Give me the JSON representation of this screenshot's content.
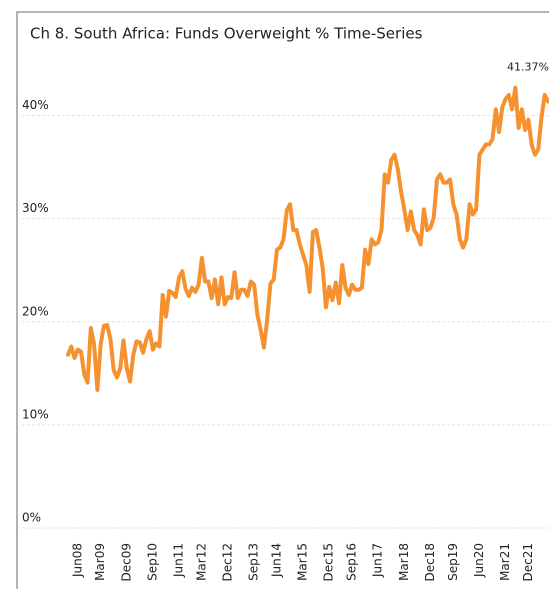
{
  "chart_data": {
    "type": "line",
    "title": "Ch 8. South Africa:  Funds Overweight % Time-Series",
    "categories": [
      null,
      null,
      null,
      "Jun08",
      null,
      null,
      null,
      null,
      null,
      null,
      "Mar09",
      null,
      null,
      null,
      null,
      null,
      null,
      null,
      "Dec09",
      null,
      null,
      null,
      null,
      null,
      null,
      null,
      "Sep10",
      null,
      null,
      null,
      null,
      null,
      null,
      null,
      "Jun11",
      null,
      null,
      null,
      null,
      null,
      null,
      "Mar12",
      null,
      null,
      null,
      null,
      null,
      null,
      null,
      "Dec12",
      null,
      null,
      null,
      null,
      null,
      null,
      null,
      "Sep13",
      null,
      null,
      null,
      null,
      null,
      null,
      "Jun14",
      null,
      null,
      null,
      null,
      null,
      null,
      null,
      "Mar15",
      null,
      null,
      null,
      null,
      null,
      null,
      null,
      "Dec15",
      null,
      null,
      null,
      null,
      null,
      null,
      "Sep16",
      null,
      null,
      null,
      null,
      null,
      null,
      null,
      "Jun17",
      null,
      null,
      null,
      null,
      null,
      null,
      null,
      "Mar18",
      null,
      null,
      null,
      null,
      null,
      null,
      null,
      "Dec18",
      null,
      null,
      null,
      null,
      null,
      null,
      "Sep19",
      null,
      null,
      null,
      null,
      null,
      null,
      null,
      "Jun20",
      null,
      null,
      null,
      null,
      null,
      null,
      null,
      "Mar21",
      null,
      null,
      null,
      null,
      null,
      null,
      "Dec21",
      null,
      null,
      null,
      null,
      null,
      null
    ],
    "series": [
      {
        "color": "#f5922f",
        "values": [
          16.8,
          17.6,
          16.5,
          17.3,
          17.1,
          14.9,
          14.1,
          19.4,
          17.8,
          13.4,
          17.8,
          19.6,
          19.7,
          18.3,
          15.3,
          14.6,
          15.5,
          18.2,
          15.5,
          14.2,
          16.8,
          18.1,
          18.0,
          17.0,
          18.3,
          19.1,
          17.3,
          17.9,
          17.6,
          22.6,
          20.5,
          23.0,
          22.8,
          22.4,
          24.3,
          24.9,
          23.2,
          22.5,
          23.3,
          22.9,
          23.6,
          26.2,
          23.9,
          23.9,
          22.3,
          24.1,
          21.7,
          24.3,
          21.7,
          22.4,
          22.3,
          24.8,
          22.3,
          23.1,
          23.1,
          22.5,
          23.9,
          23.6,
          20.7,
          19.2,
          17.5,
          20.2,
          23.7,
          24.1,
          27.0,
          27.2,
          28.0,
          30.8,
          31.4,
          28.9,
          28.9,
          27.5,
          26.5,
          25.5,
          22.9,
          28.7,
          28.9,
          27.2,
          25.2,
          21.4,
          23.4,
          22.1,
          23.8,
          21.8,
          25.5,
          23.3,
          22.6,
          23.6,
          23.1,
          23.1,
          23.3,
          27.0,
          25.6,
          28.0,
          27.5,
          27.7,
          28.9,
          34.3,
          33.5,
          35.7,
          36.2,
          34.8,
          32.6,
          30.9,
          28.9,
          30.7,
          28.9,
          28.4,
          27.5,
          30.9,
          28.9,
          29.1,
          30.1,
          33.8,
          34.3,
          33.5,
          33.5,
          33.8,
          31.4,
          30.4,
          28.0,
          27.2,
          28.0,
          31.4,
          30.4,
          30.9,
          36.2,
          36.7,
          37.2,
          37.2,
          37.7,
          40.6,
          38.4,
          40.8,
          41.6,
          42.0,
          40.6,
          42.7,
          38.8,
          40.6,
          38.6,
          39.6,
          37.2,
          36.2,
          36.7,
          39.8,
          42.0,
          41.37
        ],
        "value_labels": [
          null,
          null,
          null,
          null,
          null,
          null,
          null,
          null,
          null,
          null,
          null,
          null,
          null,
          null,
          null,
          null,
          null,
          null,
          null,
          null,
          null,
          null,
          null,
          null,
          null,
          null,
          null,
          null,
          null,
          null,
          null,
          null,
          null,
          null,
          null,
          null,
          null,
          null,
          null,
          null,
          null,
          null,
          null,
          null,
          null,
          null,
          null,
          null,
          null,
          null,
          null,
          null,
          null,
          null,
          null,
          null,
          null,
          null,
          null,
          null,
          null,
          null,
          null,
          null,
          null,
          null,
          null,
          null,
          null,
          null,
          null,
          null,
          null,
          null,
          null,
          null,
          null,
          null,
          null,
          null,
          null,
          null,
          null,
          null,
          null,
          null,
          null,
          null,
          null,
          null,
          null,
          null,
          null,
          null,
          null,
          null,
          null,
          null,
          null,
          null,
          null,
          null,
          null,
          null,
          null,
          null,
          null,
          null,
          null,
          null,
          null,
          null,
          null,
          null,
          null,
          null,
          null,
          null,
          null,
          null,
          null,
          null,
          null,
          null,
          null,
          null,
          null,
          null,
          null,
          null,
          null,
          null,
          null,
          null,
          null,
          null,
          null,
          null,
          null,
          null,
          null,
          null,
          null,
          null,
          null,
          null,
          null,
          "41.37%"
        ]
      }
    ],
    "ylim": [
      0,
      45
    ],
    "yticks": [
      {
        "value": 0,
        "label": "0%"
      },
      {
        "value": 10,
        "label": "10%"
      },
      {
        "value": 20,
        "label": "20%"
      },
      {
        "value": 30,
        "label": "30%"
      },
      {
        "value": 40,
        "label": "40%"
      }
    ],
    "grid": true
  }
}
